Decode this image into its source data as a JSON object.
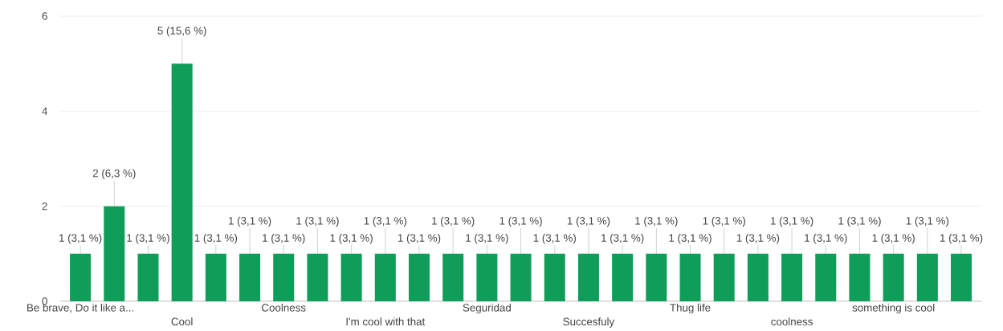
{
  "chart_data": {
    "type": "bar",
    "categories": [
      "Be brave, Do it like a...",
      null,
      null,
      "Cool",
      null,
      null,
      "Coolness",
      null,
      null,
      "I'm cool with that",
      null,
      null,
      "Seguridad",
      null,
      null,
      "Succesfuly",
      null,
      null,
      "Thug life",
      null,
      null,
      "coolness",
      null,
      null,
      "something is cool",
      null,
      null
    ],
    "values": [
      1,
      2,
      1,
      5,
      1,
      1,
      1,
      1,
      1,
      1,
      1,
      1,
      1,
      1,
      1,
      1,
      1,
      1,
      1,
      1,
      1,
      1,
      1,
      1,
      1,
      1,
      1
    ],
    "value_labels": [
      "1 (3,1 %)",
      "2 (6,3 %)",
      "1 (3,1 %)",
      "5 (15,6 %)",
      "1 (3,1 %)",
      "1 (3,1 %)",
      "1 (3,1 %)",
      "1 (3,1 %)",
      "1 (3,1 %)",
      "1 (3,1 %)",
      "1 (3,1 %)",
      "1 (3,1 %)",
      "1 (3,1 %)",
      "1 (3,1 %)",
      "1 (3,1 %)",
      "1 (3,1 %)",
      "1 (3,1 %)",
      "1 (3,1 %)",
      "1 (3,1 %)",
      "1 (3,1 %)",
      "1 (3,1 %)",
      "1 (3,1 %)",
      "1 (3,1 %)",
      "1 (3,1 %)",
      "1 (3,1 %)",
      "1 (3,1 %)",
      "1 (3,1 %)"
    ],
    "color": "#109d59",
    "ylim": [
      0,
      6
    ],
    "yticks": [
      0,
      2,
      4,
      6
    ],
    "grid": "y"
  }
}
